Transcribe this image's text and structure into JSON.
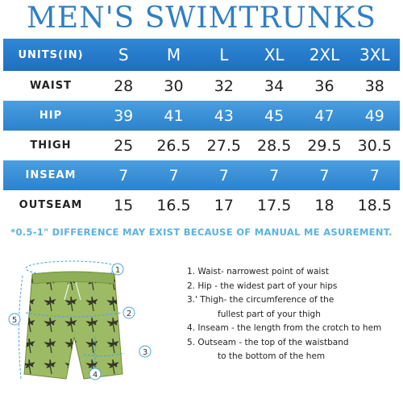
{
  "title": "MEN'S SWIMTRUNKS",
  "table": {
    "header": {
      "label": "UNITS(IN)",
      "sizes": [
        "S",
        "M",
        "L",
        "XL",
        "2XL",
        "3XL"
      ]
    },
    "rows": [
      {
        "label": "WAIST",
        "values": [
          "28",
          "30",
          "32",
          "34",
          "36",
          "38"
        ]
      },
      {
        "label": "HIP",
        "values": [
          "39",
          "41",
          "43",
          "45",
          "47",
          "49"
        ]
      },
      {
        "label": "THIGH",
        "values": [
          "25",
          "26.5",
          "27.5",
          "28.5",
          "29.5",
          "30.5"
        ]
      },
      {
        "label": "INSEAM",
        "values": [
          "7",
          "7",
          "7",
          "7",
          "7",
          "7"
        ]
      },
      {
        "label": "OUTSEAM",
        "values": [
          "15",
          "16.5",
          "17",
          "17.5",
          "18",
          "18.5"
        ]
      }
    ]
  },
  "note": "*0.5-1\" DIFFERENCE MAY EXIST BECAUSE OF MANUAL ME ASUREMENT.",
  "markers": [
    "1",
    "2",
    "3",
    "4",
    "5"
  ],
  "colors": {
    "header_blue": "#1f6fc0",
    "row_blue": "#3b93d8",
    "title_blue": "#2f7fc4",
    "trunks_green": "#9dbb64"
  },
  "steps": [
    {
      "line1": "1. Waist- narrowest point of waist"
    },
    {
      "line1": "2. Hip - the widest part of your hips"
    },
    {
      "line1": "3.' Thigh- the circumference of the",
      "line2": "fullest part of your thigh"
    },
    {
      "line1": "4. Inseam - the length from the crotch to hem"
    },
    {
      "line1": "5. Outseam - the top of the waistband",
      "line2": "to the bottom of the hem"
    }
  ]
}
